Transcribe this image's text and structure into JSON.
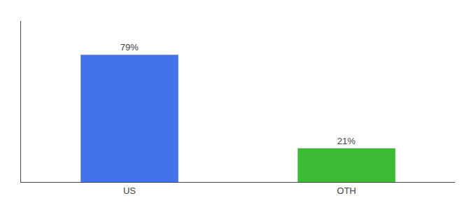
{
  "chart_data": {
    "type": "bar",
    "categories": [
      "US",
      "OTH"
    ],
    "values": [
      79,
      21
    ],
    "value_labels": [
      "79%",
      "21%"
    ],
    "colors": [
      "#4472e8",
      "#3dbb35"
    ],
    "ylim": [
      0,
      100
    ],
    "grid": false,
    "data_labels": true,
    "tick_labels": "x"
  }
}
